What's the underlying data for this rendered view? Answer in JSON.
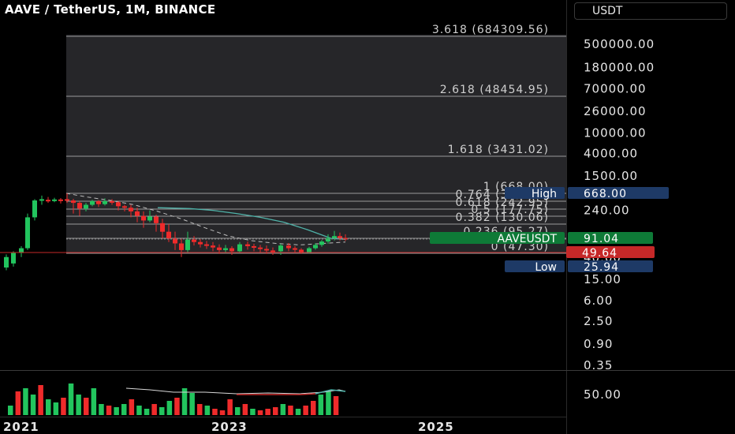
{
  "header": {
    "title": "AAVE / TetherUS, 1M, BINANCE",
    "currency": "USDT"
  },
  "fib_levels": [
    {
      "label": "3.618 (684309.56)",
      "value": 684309.56
    },
    {
      "label": "2.618 (48454.95)",
      "value": 48454.95
    },
    {
      "label": "1.618 (3431.02)",
      "value": 3431.02
    },
    {
      "label": "1 (668.00)",
      "value": 668.0
    },
    {
      "label": "0.764 (357.60)",
      "value": 357.6
    },
    {
      "label": "0.618 (242.95)",
      "value": 242.95
    },
    {
      "label": "0.5 (177.75)",
      "value": 177.75
    },
    {
      "label": "0.382 (130.06)",
      "value": 130.06
    },
    {
      "label": "0.236 (95.27)",
      "value": 95.27
    },
    {
      "label": "0 (47.30)",
      "value": 47.3
    }
  ],
  "price_axis": {
    "ticks": [
      "500000.00",
      "180000.00",
      "70000.00",
      "26000.00",
      "10000.00",
      "4000.00",
      "1500.00",
      "240.00",
      "40.00",
      "15.00",
      "6.00",
      "2.50",
      "0.90",
      "0.35"
    ],
    "tick_values": [
      500000,
      180000,
      70000,
      26000,
      10000,
      4000,
      1500,
      240,
      40,
      15,
      6,
      2.5,
      0.9,
      0.35
    ],
    "scale": "log"
  },
  "badges": {
    "high_label": "High",
    "high_value": "668.00",
    "symbol_label": "AAVEUSDT",
    "symbol_value": "91.04",
    "red_value": "49.64",
    "low_label": "Low",
    "low_value": "25.94"
  },
  "volume_axis": {
    "tick": "50.00"
  },
  "time_axis": {
    "labels": [
      "2021",
      "2023",
      "2025"
    ]
  },
  "colors": {
    "up": "#22c55e",
    "down": "#ef2b2b",
    "fib_line": "#9a9a9a",
    "ma_line": "#4fb3a9",
    "badge_blue": "#1e3a66",
    "badge_green": "#0e7a37",
    "badge_red": "#c62828"
  }
}
